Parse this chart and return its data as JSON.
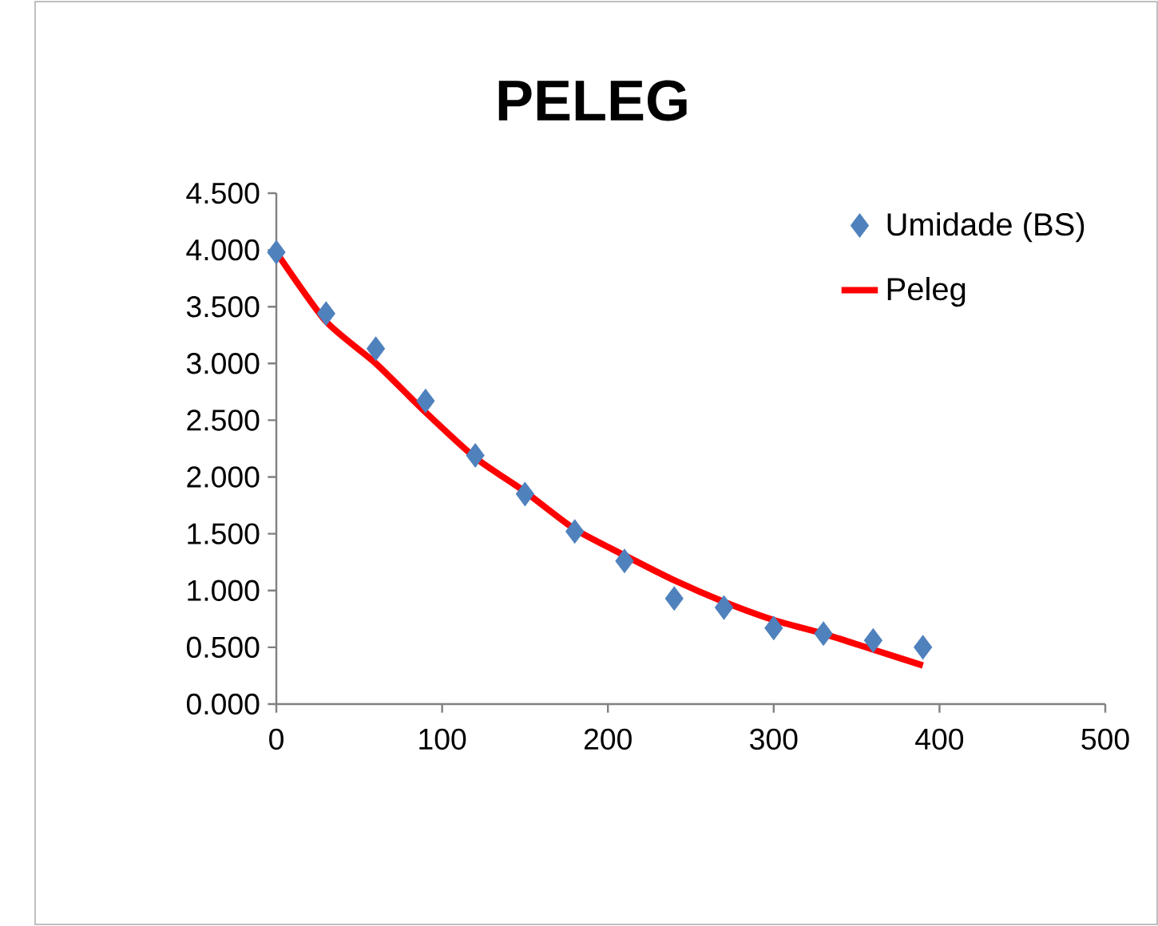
{
  "chart_data": {
    "type": "scatter",
    "title": "PELEG",
    "x": [
      0,
      30,
      60,
      90,
      120,
      150,
      180,
      210,
      240,
      270,
      300,
      330,
      360,
      390
    ],
    "series": [
      {
        "name": "Umidade (BS)",
        "color": "#4f81bd",
        "marker": "diamond",
        "values": [
          3.98,
          3.44,
          3.13,
          2.67,
          2.19,
          1.85,
          1.52,
          1.26,
          0.93,
          0.85,
          0.67,
          0.62,
          0.56,
          0.5
        ]
      },
      {
        "name": "Peleg",
        "type": "line",
        "color": "#ff0000",
        "marker": "none",
        "line_style": "solid",
        "values": [
          3.98,
          3.37,
          3.0,
          2.57,
          2.17,
          1.87,
          1.54,
          1.31,
          1.09,
          0.9,
          0.74,
          0.62,
          0.48,
          0.34
        ]
      }
    ],
    "xlim": [
      0,
      500
    ],
    "xticks": [
      0,
      100,
      200,
      300,
      400,
      500
    ],
    "ylim": [
      0,
      4.5
    ],
    "yticks": [
      {
        "value": 0,
        "label": "0.000"
      },
      {
        "value": 0.5,
        "label": "0.500"
      },
      {
        "value": 1,
        "label": "1.000"
      },
      {
        "value": 1.5,
        "label": "1.500"
      },
      {
        "value": 2,
        "label": "2.000"
      },
      {
        "value": 2.5,
        "label": "2.500"
      },
      {
        "value": 3,
        "label": "3.000"
      },
      {
        "value": 3.5,
        "label": "3.500"
      },
      {
        "value": 4,
        "label": "4.000"
      },
      {
        "value": 4.5,
        "label": "4.500"
      }
    ],
    "grid": false,
    "legend": "top right"
  }
}
